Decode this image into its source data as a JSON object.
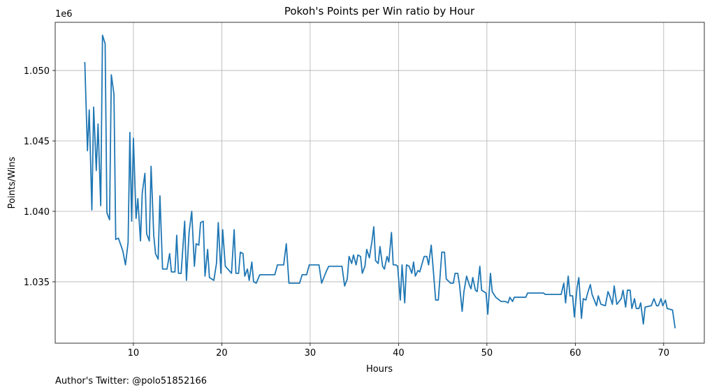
{
  "chart_data": {
    "type": "line",
    "title": "Pokoh's Points per Win ratio by Hour",
    "xlabel": "Hours",
    "ylabel": "Points/Wins",
    "y_offset_label": "1e6",
    "footnote": "Author's Twitter: @polo51852166",
    "color": "#1f77b4",
    "grid": true,
    "xlim": [
      1.15,
      74.6
    ],
    "ylim": [
      1.03064,
      1.05342
    ],
    "xticks": [
      10,
      20,
      30,
      40,
      50,
      60,
      70
    ],
    "yticks": [
      1.035,
      {
        "value": 1.04,
        "label": "1.040"
      },
      1.045,
      {
        "value": 1.05,
        "label": "1.050"
      }
    ],
    "x": [
      4.5,
      4.8,
      5.0,
      5.3,
      5.5,
      5.8,
      6.0,
      6.3,
      6.5,
      6.8,
      7.0,
      7.3,
      7.5,
      7.8,
      8.0,
      8.3,
      8.8,
      9.1,
      9.4,
      9.6,
      9.8,
      10.0,
      10.3,
      10.5,
      10.8,
      11.0,
      11.3,
      11.5,
      11.8,
      12.0,
      12.3,
      12.5,
      12.8,
      13.0,
      13.3,
      13.8,
      14.1,
      14.3,
      14.7,
      14.9,
      15.1,
      15.4,
      15.8,
      16.0,
      16.3,
      16.6,
      16.9,
      17.1,
      17.4,
      17.6,
      17.9,
      18.1,
      18.4,
      18.6,
      19.1,
      19.4,
      19.6,
      19.9,
      20.1,
      20.4,
      21.1,
      21.4,
      21.6,
      21.9,
      22.1,
      22.4,
      22.6,
      22.9,
      23.1,
      23.4,
      23.6,
      23.9,
      24.3,
      26.0,
      26.3,
      27.0,
      27.3,
      27.6,
      28.8,
      29.1,
      29.6,
      29.9,
      31.0,
      31.3,
      31.8,
      32.1,
      33.6,
      33.9,
      34.2,
      34.4,
      34.7,
      34.9,
      35.2,
      35.4,
      35.7,
      35.9,
      36.2,
      36.4,
      36.7,
      37.0,
      37.2,
      37.4,
      37.7,
      37.9,
      38.2,
      38.4,
      38.7,
      38.9,
      39.2,
      39.4,
      39.7,
      39.9,
      40.2,
      40.4,
      40.7,
      40.9,
      41.2,
      41.5,
      41.7,
      41.9,
      42.2,
      42.4,
      42.9,
      43.2,
      43.4,
      43.7,
      43.9,
      44.2,
      44.5,
      44.9,
      45.2,
      45.4,
      45.9,
      46.2,
      46.4,
      46.7,
      46.9,
      47.2,
      47.4,
      47.7,
      48.0,
      48.2,
      48.4,
      48.7,
      48.9,
      49.2,
      49.4,
      49.9,
      50.1,
      50.4,
      50.6,
      51.0,
      51.6,
      52.1,
      52.4,
      52.6,
      52.9,
      53.1,
      54.4,
      54.6,
      56.4,
      56.6,
      58.4,
      58.7,
      58.9,
      59.2,
      59.4,
      59.7,
      59.9,
      60.2,
      60.4,
      60.7,
      60.9,
      61.2,
      61.4,
      61.7,
      61.9,
      62.4,
      62.6,
      62.9,
      63.4,
      63.7,
      63.9,
      64.2,
      64.4,
      64.7,
      65.2,
      65.4,
      65.7,
      65.9,
      66.2,
      66.4,
      66.7,
      66.9,
      67.2,
      67.4,
      67.7,
      67.9,
      68.6,
      68.9,
      69.2,
      69.4,
      69.7,
      69.9,
      70.2,
      70.4,
      71.0,
      71.3
    ],
    "values": [
      1.0506,
      1.0443,
      1.0472,
      1.0401,
      1.0474,
      1.0429,
      1.0462,
      1.0404,
      1.0525,
      1.0519,
      1.0399,
      1.0394,
      1.0497,
      1.0483,
      1.038,
      1.0381,
      1.0372,
      1.0362,
      1.0378,
      1.0456,
      1.0393,
      1.0452,
      1.0395,
      1.0409,
      1.0379,
      1.0413,
      1.0427,
      1.0384,
      1.0379,
      1.0432,
      1.0383,
      1.037,
      1.0366,
      1.0411,
      1.0359,
      1.0359,
      1.037,
      1.0357,
      1.0357,
      1.0383,
      1.0356,
      1.0356,
      1.0393,
      1.0351,
      1.0385,
      1.04,
      1.0361,
      1.0377,
      1.0376,
      1.0392,
      1.0393,
      1.0354,
      1.0373,
      1.0353,
      1.0351,
      1.0363,
      1.0392,
      1.0356,
      1.0387,
      1.0361,
      1.0356,
      1.0387,
      1.0356,
      1.0356,
      1.0371,
      1.037,
      1.0354,
      1.0359,
      1.0351,
      1.0364,
      1.035,
      1.0349,
      1.0355,
      1.0355,
      1.0362,
      1.0362,
      1.0377,
      1.0349,
      1.0349,
      1.0355,
      1.0355,
      1.0362,
      1.0362,
      1.0349,
      1.0357,
      1.0361,
      1.0361,
      1.0347,
      1.0352,
      1.0368,
      1.0363,
      1.0369,
      1.0362,
      1.0369,
      1.0368,
      1.0356,
      1.0361,
      1.0373,
      1.0367,
      1.0379,
      1.0389,
      1.0365,
      1.0363,
      1.0375,
      1.0361,
      1.0359,
      1.0368,
      1.0364,
      1.0385,
      1.0362,
      1.0362,
      1.0361,
      1.0337,
      1.0362,
      1.0335,
      1.0362,
      1.0361,
      1.0356,
      1.0364,
      1.0354,
      1.0358,
      1.0357,
      1.0368,
      1.0368,
      1.0362,
      1.0376,
      1.0361,
      1.0337,
      1.0337,
      1.0371,
      1.0371,
      1.0352,
      1.0349,
      1.0349,
      1.0356,
      1.0356,
      1.0348,
      1.0329,
      1.0343,
      1.0354,
      1.0348,
      1.0345,
      1.0353,
      1.0344,
      1.0343,
      1.0361,
      1.0344,
      1.0342,
      1.0327,
      1.0356,
      1.0343,
      1.0339,
      1.0336,
      1.0336,
      1.0335,
      1.0339,
      1.0336,
      1.0339,
      1.0339,
      1.0342,
      1.0342,
      1.0341,
      1.0341,
      1.0349,
      1.0335,
      1.0354,
      1.034,
      1.034,
      1.0325,
      1.0346,
      1.0353,
      1.0324,
      1.0338,
      1.0337,
      1.0342,
      1.0348,
      1.0341,
      1.0333,
      1.034,
      1.0334,
      1.0333,
      1.0343,
      1.034,
      1.0334,
      1.0347,
      1.0334,
      1.0338,
      1.0344,
      1.0332,
      1.0344,
      1.0344,
      1.0331,
      1.0338,
      1.0331,
      1.0331,
      1.0335,
      1.032,
      1.0332,
      1.0333,
      1.0338,
      1.0333,
      1.0333,
      1.0338,
      1.0333,
      1.0337,
      1.0331,
      1.033,
      1.0317
    ]
  }
}
